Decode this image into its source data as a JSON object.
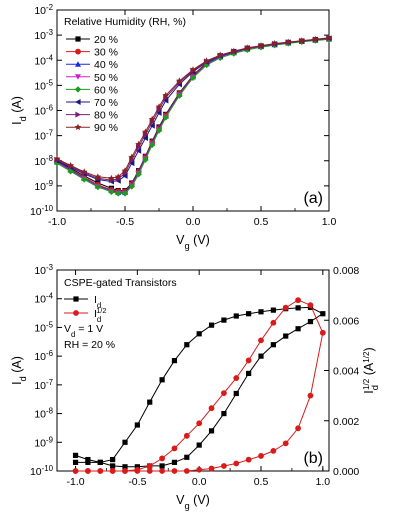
{
  "chart_data": [
    {
      "type": "line",
      "panel_label": "(a)",
      "xlabel": "V",
      "xlabel_sub": "g",
      "xunit": " (V)",
      "ylabel": "I",
      "ylabel_sub": "d",
      "yunit": " (A)",
      "xlim": [
        -1.0,
        1.0
      ],
      "ylim": [
        1e-10,
        0.01
      ],
      "yscale": "log",
      "xticks": [
        -1.0,
        -0.5,
        0.0,
        0.5,
        1.0
      ],
      "xtick_labels": [
        "-1.0",
        "-0.5",
        "0.0",
        "0.5",
        "1.0"
      ],
      "ytick_exponents": [
        -10,
        -9,
        -8,
        -7,
        -6,
        -5,
        -4,
        -3,
        -2
      ],
      "ytick_base": "10",
      "legend_title": "Relative Humidity (RH, %)",
      "legend_position": "top-left",
      "x": [
        -1.0,
        -0.9,
        -0.8,
        -0.7,
        -0.6,
        -0.55,
        -0.5,
        -0.45,
        -0.4,
        -0.35,
        -0.3,
        -0.25,
        -0.2,
        -0.1,
        0.0,
        0.1,
        0.2,
        0.3,
        0.4,
        0.5,
        0.6,
        0.7,
        0.8,
        0.9,
        1.0
      ],
      "series": [
        {
          "name": "20 %",
          "color": "#000000",
          "marker": "square",
          "values": [
            1e-08,
            5e-09,
            2.5e-09,
            1.3e-09,
            8e-10,
            6.5e-10,
            6.5e-10,
            1.3e-09,
            4e-09,
            1.5e-08,
            6e-08,
            2.2e-07,
            7e-07,
            5e-06,
            2.5e-05,
            8e-05,
            0.00015,
            0.00022,
            0.0003,
            0.00037,
            0.00044,
            0.00051,
            0.00058,
            0.00066,
            0.00073
          ]
        },
        {
          "name": "30 %",
          "color": "#d81b1b",
          "marker": "circle",
          "values": [
            9e-09,
            4.5e-09,
            2.2e-09,
            1.1e-09,
            7e-10,
            6e-10,
            6e-10,
            1.2e-09,
            3.7e-09,
            1.4e-08,
            5.5e-08,
            2e-07,
            6.5e-07,
            4.7e-06,
            2.4e-05,
            7.7e-05,
            0.000145,
            0.00021,
            0.00029,
            0.00036,
            0.00043,
            0.0005,
            0.00057,
            0.00064,
            0.00071
          ]
        },
        {
          "name": "40 %",
          "color": "#1a2bd8",
          "marker": "triangle-up",
          "values": [
            9e-09,
            4.3e-09,
            2e-09,
            1e-09,
            6.5e-10,
            5.5e-10,
            5.5e-10,
            1.1e-09,
            3.4e-09,
            1.3e-08,
            5e-08,
            1.85e-07,
            6e-07,
            4.4e-06,
            2.2e-05,
            7.2e-05,
            0.000138,
            0.0002,
            0.00028,
            0.00035,
            0.00042,
            0.00049,
            0.00056,
            0.00063,
            0.0007
          ]
        },
        {
          "name": "50 %",
          "color": "#cc22cc",
          "marker": "triangle-down",
          "values": [
            8.5e-09,
            4e-09,
            1.9e-09,
            9.5e-10,
            6e-10,
            5e-10,
            5e-10,
            1e-09,
            3.1e-09,
            1.2e-08,
            4.6e-08,
            1.7e-07,
            5.6e-07,
            4.1e-06,
            2.1e-05,
            6.8e-05,
            0.00013,
            0.00019,
            0.00027,
            0.00034,
            0.00041,
            0.00048,
            0.00055,
            0.00062,
            0.00069
          ]
        },
        {
          "name": "60 %",
          "color": "#1e9a1e",
          "marker": "diamond",
          "values": [
            8e-09,
            3.8e-09,
            1.8e-09,
            9e-10,
            5.8e-10,
            5e-10,
            5e-10,
            9.5e-10,
            2.9e-09,
            1.1e-08,
            4.3e-08,
            1.6e-07,
            5.3e-07,
            3.9e-06,
            2e-05,
            6.5e-05,
            0.000125,
            0.000185,
            0.00026,
            0.00033,
            0.0004,
            0.00047,
            0.00054,
            0.00061,
            0.00068
          ]
        },
        {
          "name": "70 %",
          "color": "#1a1a80",
          "marker": "triangle-left",
          "values": [
            1e-08,
            5.5e-09,
            3e-09,
            1.8e-09,
            1.5e-09,
            1.6e-09,
            2.5e-09,
            8e-09,
            2.5e-08,
            8e-08,
            2.5e-07,
            8e-07,
            2.5e-06,
            1.1e-05,
            3.5e-05,
            8.5e-05,
            0.00015,
            0.00022,
            0.0003,
            0.00037,
            0.00044,
            0.00051,
            0.00058,
            0.00066,
            0.00074
          ]
        },
        {
          "name": "80 %",
          "color": "#7a1a7a",
          "marker": "triangle-right",
          "values": [
            1.1e-08,
            6e-09,
            3.3e-09,
            2e-09,
            1.7e-09,
            1.9e-09,
            3.2e-09,
            1.1e-08,
            3.5e-08,
            1.1e-07,
            3.5e-07,
            1.1e-06,
            3.3e-06,
            1.3e-05,
            3.9e-05,
            9e-05,
            0.000155,
            0.000225,
            0.000305,
            0.000375,
            0.00045,
            0.00052,
            0.00059,
            0.00067,
            0.00076
          ]
        },
        {
          "name": "90 %",
          "color": "#8a2020",
          "marker": "star",
          "values": [
            1.2e-08,
            6.5e-09,
            3.6e-09,
            2.3e-09,
            2e-09,
            2.3e-09,
            4e-09,
            1.4e-08,
            4.5e-08,
            1.4e-07,
            4.5e-07,
            1.4e-06,
            4e-06,
            1.5e-05,
            4.2e-05,
            9.5e-05,
            0.00016,
            0.00023,
            0.00031,
            0.00038,
            0.00046,
            0.00053,
            0.0006,
            0.00068,
            0.00078
          ]
        }
      ]
    },
    {
      "type": "line",
      "panel_label": "(b)",
      "legend_title": "CSPE-gated Transistors",
      "legend_position": "top-left",
      "annotations": [
        {
          "main": "V",
          "sub": "d",
          "rest": " = 1 V"
        },
        {
          "main": "RH = 20 %",
          "sub": "",
          "rest": ""
        }
      ],
      "xlabel": "V",
      "xlabel_sub": "g",
      "xunit": " (V)",
      "ylabel": "I",
      "ylabel_sub": "d",
      "yunit": " (A)",
      "y2label": "I",
      "y2label_sub": "d",
      "y2label_sup": "1/2",
      "y2unit_open": " (A",
      "y2unit_sup": "1/2",
      "y2unit_close": ")",
      "xlim": [
        -1.15,
        1.05
      ],
      "ylim": [
        1e-10,
        0.001
      ],
      "yscale": "log",
      "y2lim": [
        0.0,
        0.008
      ],
      "xticks": [
        -1.0,
        -0.5,
        0.0,
        0.5,
        1.0
      ],
      "xtick_labels": [
        "-1.0",
        "-0.5",
        "0.0",
        "0.5",
        "1.0"
      ],
      "ytick_exponents": [
        -10,
        -9,
        -8,
        -7,
        -6,
        -5,
        -4,
        -3
      ],
      "ytick_base": "10",
      "y2ticks": [
        0.0,
        0.002,
        0.004,
        0.006,
        0.008
      ],
      "y2tick_labels": [
        "0.000",
        "0.002",
        "0.004",
        "0.006",
        "0.008"
      ],
      "series": [
        {
          "name": "I",
          "name_sub": "d",
          "name_sup": "",
          "axis": "left",
          "color": "#000000",
          "marker": "square",
          "x": [
            -1.0,
            -0.9,
            -0.8,
            -0.7,
            -0.6,
            -0.5,
            -0.4,
            -0.3,
            -0.2,
            -0.1,
            0.0,
            0.1,
            0.2,
            0.3,
            0.4,
            0.5,
            0.6,
            0.7,
            0.8,
            0.9,
            1.0,
            0.9,
            0.8,
            0.7,
            0.6,
            0.5,
            0.4,
            0.3,
            0.2,
            0.1,
            0.0,
            -0.1,
            -0.2,
            -0.3,
            -0.4,
            -0.5,
            -0.6,
            -0.7,
            -0.8,
            -0.9,
            -1.0
          ],
          "values": [
            3.5e-10,
            2.5e-10,
            2e-10,
            2.5e-10,
            1e-09,
            4e-09,
            2.5e-08,
            1.5e-07,
            7e-07,
            2.5e-06,
            6e-06,
            1.2e-05,
            1.8e-05,
            2.5e-05,
            3e-05,
            3.5e-05,
            4e-05,
            4.5e-05,
            4.8e-05,
            5e-05,
            3e-05,
            1.6e-05,
            9e-06,
            5e-06,
            2.5e-06,
            1e-06,
            2.5e-07,
            5e-08,
            1e-08,
            2.5e-09,
            8e-10,
            3e-10,
            2e-10,
            1.5e-10,
            1.5e-10,
            1.4e-10,
            1.4e-10,
            1.5e-10,
            2e-10,
            2e-10,
            2e-10
          ]
        },
        {
          "name": "I",
          "name_sub": "d",
          "name_sup": "1/2",
          "axis": "right",
          "color": "#d81b1b",
          "marker": "circle",
          "x": [
            -1.0,
            -0.9,
            -0.8,
            -0.7,
            -0.6,
            -0.5,
            -0.4,
            -0.3,
            -0.2,
            -0.1,
            0.0,
            0.1,
            0.2,
            0.3,
            0.4,
            0.5,
            0.6,
            0.7,
            0.8,
            0.9,
            1.0,
            0.9,
            0.8,
            0.7,
            0.6,
            0.5,
            0.4,
            0.3,
            0.2,
            0.1,
            0.0,
            -0.1,
            -0.2,
            -0.3,
            -0.4,
            -0.5,
            -0.6,
            -0.7,
            -0.8,
            -0.9,
            -1.0
          ],
          "values": [
            0.0,
            0.0,
            0.0,
            0.0,
            0.0,
            5e-05,
            0.0002,
            0.0005,
            0.0009,
            0.0014,
            0.0019,
            0.0025,
            0.0031,
            0.0037,
            0.0044,
            0.0052,
            0.0059,
            0.0065,
            0.0068,
            0.0066,
            0.0055,
            0.003,
            0.0017,
            0.0011,
            0.0008,
            0.0006,
            0.00045,
            0.0003,
            0.0002,
            0.0001,
            5e-05,
            0.0,
            0.0,
            0.0,
            0.0,
            0.0,
            0.0,
            0.0,
            0.0,
            0.0,
            0.0
          ]
        }
      ]
    }
  ]
}
